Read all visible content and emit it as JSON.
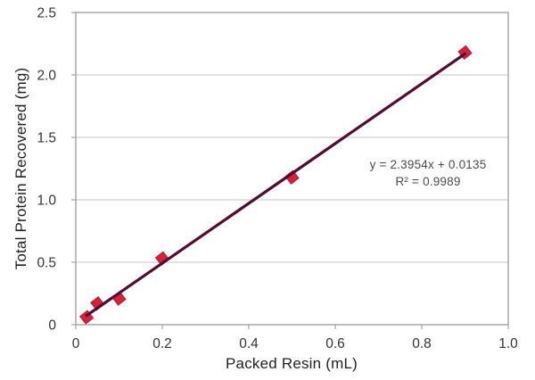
{
  "colors": {
    "background": "#ffffff",
    "marker_fill": "#d32239",
    "marker_edge": "#c31233",
    "trendline": "#530c33",
    "gridline": "#c4c4c4",
    "axis_border": "#a2a2a2",
    "tick_label": "#333333",
    "axis_title": "#1f1f1f",
    "annotation_text": "#4a4a4a"
  },
  "chart_data": {
    "type": "scatter",
    "title": "",
    "xlabel": "Packed Resin (mL)",
    "ylabel": "Total Protein Recovered (mg)",
    "xlim": [
      0,
      1.0
    ],
    "ylim": [
      0,
      2.5
    ],
    "x_ticks": [
      "0",
      "0.2",
      "0.4",
      "0.6",
      "0.8",
      "1.0"
    ],
    "y_ticks": [
      "0",
      "0.5",
      "1.0",
      "1.5",
      "2.0",
      "2.5"
    ],
    "grid": "horizontal-only",
    "legend": "none",
    "series": [
      {
        "name": "Total protein recovered",
        "marker": "diamond",
        "x": [
          0.025,
          0.05,
          0.1,
          0.2,
          0.5,
          0.9
        ],
        "y": [
          0.06,
          0.17,
          0.21,
          0.53,
          1.18,
          2.18
        ]
      }
    ],
    "trendline": {
      "slope": 2.3954,
      "intercept": 0.0135,
      "x_start": 0.025,
      "x_end": 0.9
    },
    "annotation": {
      "equation": "y = 2.3954x + 0.0135",
      "r_squared": "R² = 0.9989"
    }
  }
}
